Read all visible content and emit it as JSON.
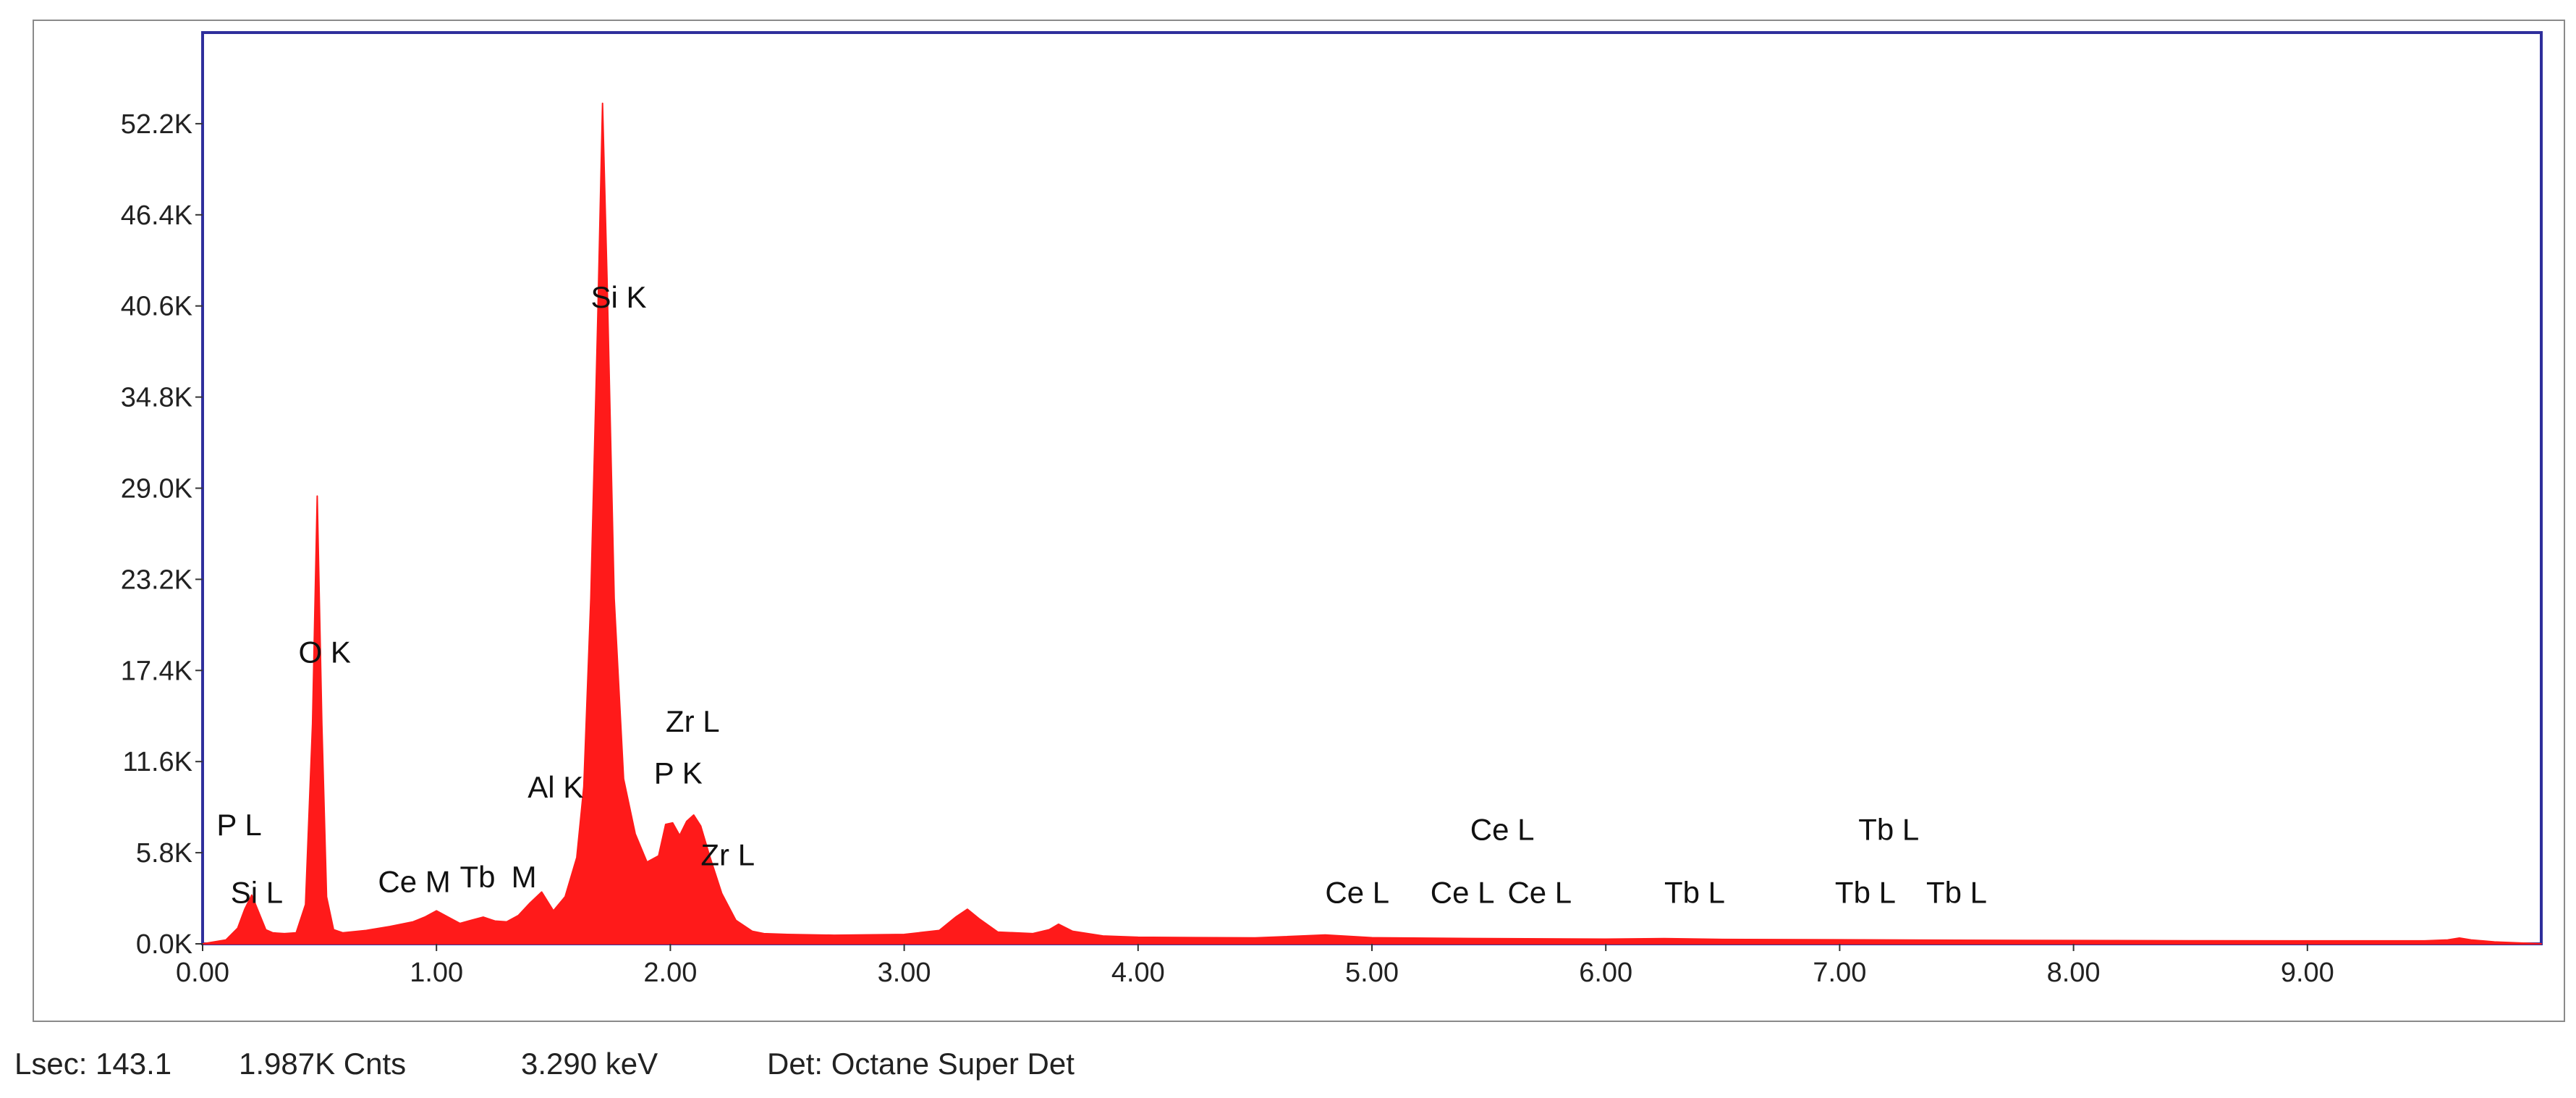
{
  "colors": {
    "spectrum": "#ff1a1a",
    "plot_border": "#2f2f9c",
    "frame_border": "#8a8a8a",
    "text": "#222222"
  },
  "status": {
    "lsec": "Lsec: 143.1",
    "counts": "1.987K Cnts",
    "energy": "3.290 keV",
    "detector": "Det: Octane Super Det"
  },
  "chart_data": {
    "type": "area",
    "xlabel": "",
    "ylabel": "",
    "xlim": [
      0,
      10
    ],
    "ylim": [
      0,
      58000
    ],
    "grid": false,
    "x_ticks": [
      0,
      1,
      2,
      3,
      4,
      5,
      6,
      7,
      8,
      9
    ],
    "x_tick_labels": [
      "0.00",
      "1.00",
      "2.00",
      "3.00",
      "4.00",
      "5.00",
      "6.00",
      "7.00",
      "8.00",
      "9.00"
    ],
    "y_ticks": [
      0,
      5800,
      11600,
      17400,
      23200,
      29000,
      34800,
      40600,
      46400,
      52200
    ],
    "y_tick_labels": [
      "0.0K",
      "5.8K",
      "11.6K",
      "17.4K",
      "23.2K",
      "29.0K",
      "34.8K",
      "40.6K",
      "46.4K",
      "52.2K"
    ],
    "series": [
      {
        "x": [
          0.0,
          0.1,
          0.15,
          0.18,
          0.21,
          0.24,
          0.27,
          0.3,
          0.35,
          0.4,
          0.44,
          0.47,
          0.49,
          0.51,
          0.53,
          0.56,
          0.6,
          0.7,
          0.8,
          0.9,
          0.95,
          1.0,
          1.05,
          1.1,
          1.15,
          1.2,
          1.25,
          1.3,
          1.35,
          1.4,
          1.45,
          1.5,
          1.55,
          1.6,
          1.63,
          1.66,
          1.69,
          1.71,
          1.73,
          1.76,
          1.8,
          1.85,
          1.9,
          1.95,
          1.98,
          2.01,
          2.04,
          2.07,
          2.1,
          2.13,
          2.17,
          2.22,
          2.28,
          2.35,
          2.4,
          2.5,
          2.7,
          3.0,
          3.15,
          3.22,
          3.27,
          3.32,
          3.4,
          3.55,
          3.62,
          3.66,
          3.72,
          3.85,
          4.0,
          4.5,
          4.8,
          5.0,
          5.5,
          6.0,
          6.25,
          6.5,
          7.0,
          7.5,
          8.0,
          8.5,
          9.0,
          9.5,
          9.6,
          9.65,
          9.7,
          9.8,
          10.0
        ],
        "y": [
          0,
          250,
          1000,
          2200,
          3100,
          2000,
          900,
          700,
          650,
          700,
          2500,
          14000,
          28500,
          14000,
          3000,
          900,
          700,
          850,
          1100,
          1400,
          1700,
          2100,
          1700,
          1300,
          1500,
          1700,
          1450,
          1400,
          1800,
          2600,
          3300,
          2100,
          3000,
          5500,
          10000,
          22000,
          40000,
          53500,
          42000,
          22000,
          10500,
          7000,
          5200,
          5600,
          7600,
          7700,
          6900,
          7800,
          8200,
          7500,
          5500,
          3200,
          1500,
          800,
          650,
          600,
          550,
          600,
          850,
          1700,
          2200,
          1600,
          750,
          650,
          900,
          1250,
          800,
          500,
          420,
          380,
          560,
          390,
          330,
          300,
          330,
          280,
          260,
          230,
          210,
          200,
          190,
          190,
          250,
          370,
          250,
          120,
          0
        ]
      }
    ],
    "annotations": [
      {
        "text": "P  L",
        "x": 0.06,
        "y": 6900
      },
      {
        "text": "Si L",
        "x": 0.12,
        "y": 2600
      },
      {
        "text": "O  K",
        "x": 0.41,
        "y": 17900
      },
      {
        "text": "Ce M",
        "x": 0.75,
        "y": 3300
      },
      {
        "text": "Tb",
        "x": 1.1,
        "y": 3600
      },
      {
        "text": "M",
        "x": 1.32,
        "y": 3600
      },
      {
        "text": "Al K",
        "x": 1.39,
        "y": 9300
      },
      {
        "text": "Si K",
        "x": 1.66,
        "y": 40500
      },
      {
        "text": "Zr L",
        "x": 1.98,
        "y": 13500
      },
      {
        "text": "P  K",
        "x": 1.93,
        "y": 10200
      },
      {
        "text": "Zr L",
        "x": 2.13,
        "y": 5000
      },
      {
        "text": "Ce L",
        "x": 4.8,
        "y": 2600
      },
      {
        "text": "Ce L",
        "x": 5.42,
        "y": 6600
      },
      {
        "text": "Ce L",
        "x": 5.25,
        "y": 2600
      },
      {
        "text": "Ce L",
        "x": 5.58,
        "y": 2600
      },
      {
        "text": "Tb L",
        "x": 6.25,
        "y": 2600
      },
      {
        "text": "Tb L",
        "x": 7.08,
        "y": 6600
      },
      {
        "text": "Tb L",
        "x": 6.98,
        "y": 2600
      },
      {
        "text": "Tb L",
        "x": 7.37,
        "y": 2600
      }
    ]
  }
}
